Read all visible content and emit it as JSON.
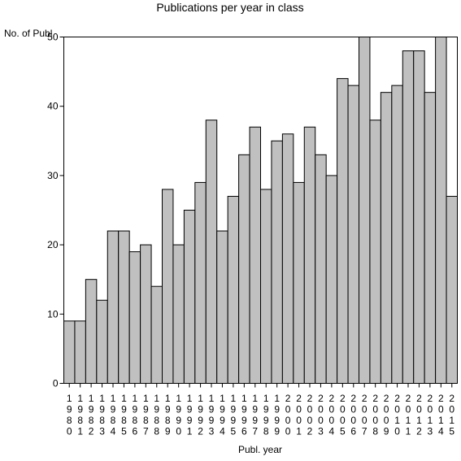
{
  "chart_data": {
    "type": "bar",
    "title": "Publications per year in class",
    "ylabel": "No. of Publ.",
    "xlabel": "Publ. year",
    "ylim": [
      0,
      50
    ],
    "yticks": [
      0,
      10,
      20,
      30,
      40,
      50
    ],
    "grid": false,
    "categories": [
      "1980",
      "1981",
      "1982",
      "1983",
      "1984",
      "1985",
      "1986",
      "1987",
      "1988",
      "1989",
      "1990",
      "1991",
      "1992",
      "1993",
      "1994",
      "1995",
      "1996",
      "1997",
      "1998",
      "1999",
      "2000",
      "2001",
      "2002",
      "2003",
      "2004",
      "2005",
      "2006",
      "2007",
      "2008",
      "2009",
      "2010",
      "2011",
      "2012",
      "2013",
      "2014",
      "2015"
    ],
    "values": [
      9,
      9,
      15,
      12,
      22,
      22,
      19,
      20,
      14,
      28,
      20,
      25,
      29,
      38,
      22,
      27,
      33,
      37,
      28,
      35,
      36,
      29,
      37,
      33,
      30,
      44,
      43,
      50,
      38,
      42,
      43,
      48,
      48,
      42,
      50,
      27
    ]
  }
}
